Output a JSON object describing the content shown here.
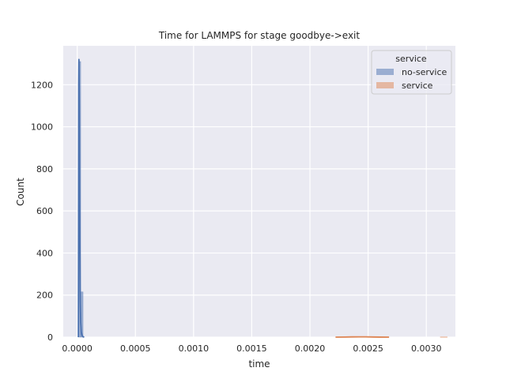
{
  "chart_data": {
    "type": "histogram",
    "title": "Time for LAMMPS for stage goodbye->exit",
    "xlabel": "time",
    "ylabel": "Count",
    "xlim": [
      -0.00012,
      0.00325
    ],
    "ylim": [
      0,
      1385
    ],
    "x_ticks": [
      {
        "value": 0.0,
        "label": "0.0000"
      },
      {
        "value": 0.0005,
        "label": "0.0005"
      },
      {
        "value": 0.001,
        "label": "0.0010"
      },
      {
        "value": 0.0015,
        "label": "0.0015"
      },
      {
        "value": 0.002,
        "label": "0.0020"
      },
      {
        "value": 0.0025,
        "label": "0.0025"
      },
      {
        "value": 0.003,
        "label": "0.0030"
      }
    ],
    "y_ticks": [
      {
        "value": 0,
        "label": "0"
      },
      {
        "value": 200,
        "label": "200"
      },
      {
        "value": 400,
        "label": "400"
      },
      {
        "value": 600,
        "label": "600"
      },
      {
        "value": 800,
        "label": "800"
      },
      {
        "value": 1000,
        "label": "1000"
      },
      {
        "value": 1200,
        "label": "1200"
      }
    ],
    "grid": true,
    "legend": {
      "title": "service",
      "placement": "top-right",
      "entries": [
        {
          "label": "no-service",
          "color": "#4c72b0"
        },
        {
          "label": "service",
          "color": "#dd8452"
        }
      ]
    },
    "series": [
      {
        "name": "no-service",
        "color": "#4c72b0",
        "bars": [
          {
            "x0": 1e-05,
            "x1": 3e-05,
            "count": 1310
          },
          {
            "x0": 3e-05,
            "x1": 5e-05,
            "count": 215
          }
        ],
        "kde": [
          [
            1e-05,
            0
          ],
          [
            1.3e-05,
            1200
          ],
          [
            1.5e-05,
            1320
          ],
          [
            1.8e-05,
            1100
          ],
          [
            2e-05,
            800
          ],
          [
            2.3e-05,
            450
          ],
          [
            2.6e-05,
            180
          ],
          [
            3e-05,
            70
          ],
          [
            3.5e-05,
            25
          ],
          [
            4.2e-05,
            8
          ],
          [
            5e-05,
            2
          ],
          [
            6e-05,
            0
          ]
        ]
      },
      {
        "name": "service",
        "color": "#dd8452",
        "bars": [
          {
            "x0": 0.00312,
            "x1": 0.00318,
            "count": 1
          }
        ],
        "kde": [
          [
            0.00222,
            0
          ],
          [
            0.0023,
            0.6
          ],
          [
            0.00236,
            1.2
          ],
          [
            0.00242,
            1.5
          ],
          [
            0.00248,
            1.3
          ],
          [
            0.00254,
            0.8
          ],
          [
            0.0026,
            0.3
          ],
          [
            0.00268,
            0
          ]
        ]
      }
    ]
  },
  "colors": {
    "background": "#eaeaf2",
    "grid": "#ffffff"
  }
}
